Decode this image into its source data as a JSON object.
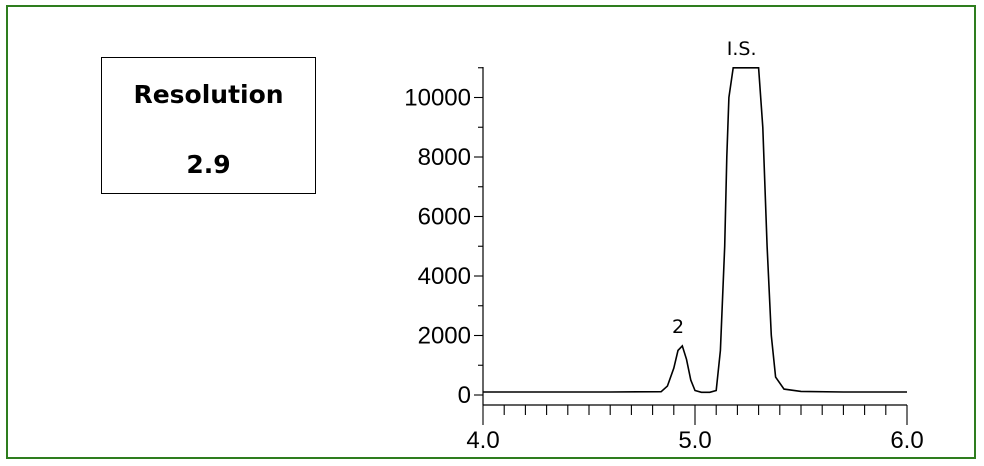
{
  "resolution_box": {
    "label": "Resolution",
    "value": "2.9"
  },
  "chart_data": {
    "type": "line",
    "title": "",
    "xlabel": "",
    "ylabel": "",
    "xlim": [
      4.0,
      6.0
    ],
    "ylim": [
      0,
      11000
    ],
    "x_ticks": [
      "4.0",
      "5.0",
      "6.0"
    ],
    "y_ticks": [
      "0",
      "2000",
      "4000",
      "6000",
      "8000",
      "10000"
    ],
    "grid": false,
    "line_color": "#000000",
    "series": [
      {
        "x": [
          4.0,
          4.6,
          4.84,
          4.87,
          4.9,
          4.92,
          4.94,
          4.96,
          4.98,
          5.0,
          5.03,
          5.07,
          5.1,
          5.12,
          5.14,
          5.15,
          5.16,
          5.18,
          5.2,
          5.22,
          5.24,
          5.26,
          5.28,
          5.3,
          5.32,
          5.34,
          5.36,
          5.38,
          5.42,
          5.5,
          5.7,
          6.0
        ],
        "y": [
          100,
          100,
          110,
          300,
          900,
          1500,
          1650,
          1200,
          500,
          150,
          90,
          90,
          150,
          1500,
          5000,
          8000,
          10000,
          11000,
          11000,
          11000,
          11000,
          11000,
          11000,
          11000,
          9000,
          5000,
          2000,
          600,
          200,
          120,
          100,
          100
        ]
      }
    ],
    "annotations": [
      {
        "text": "2",
        "x": 4.92,
        "y": 1650
      },
      {
        "text": "I.S.",
        "x": 5.22,
        "y": 11000
      }
    ]
  }
}
